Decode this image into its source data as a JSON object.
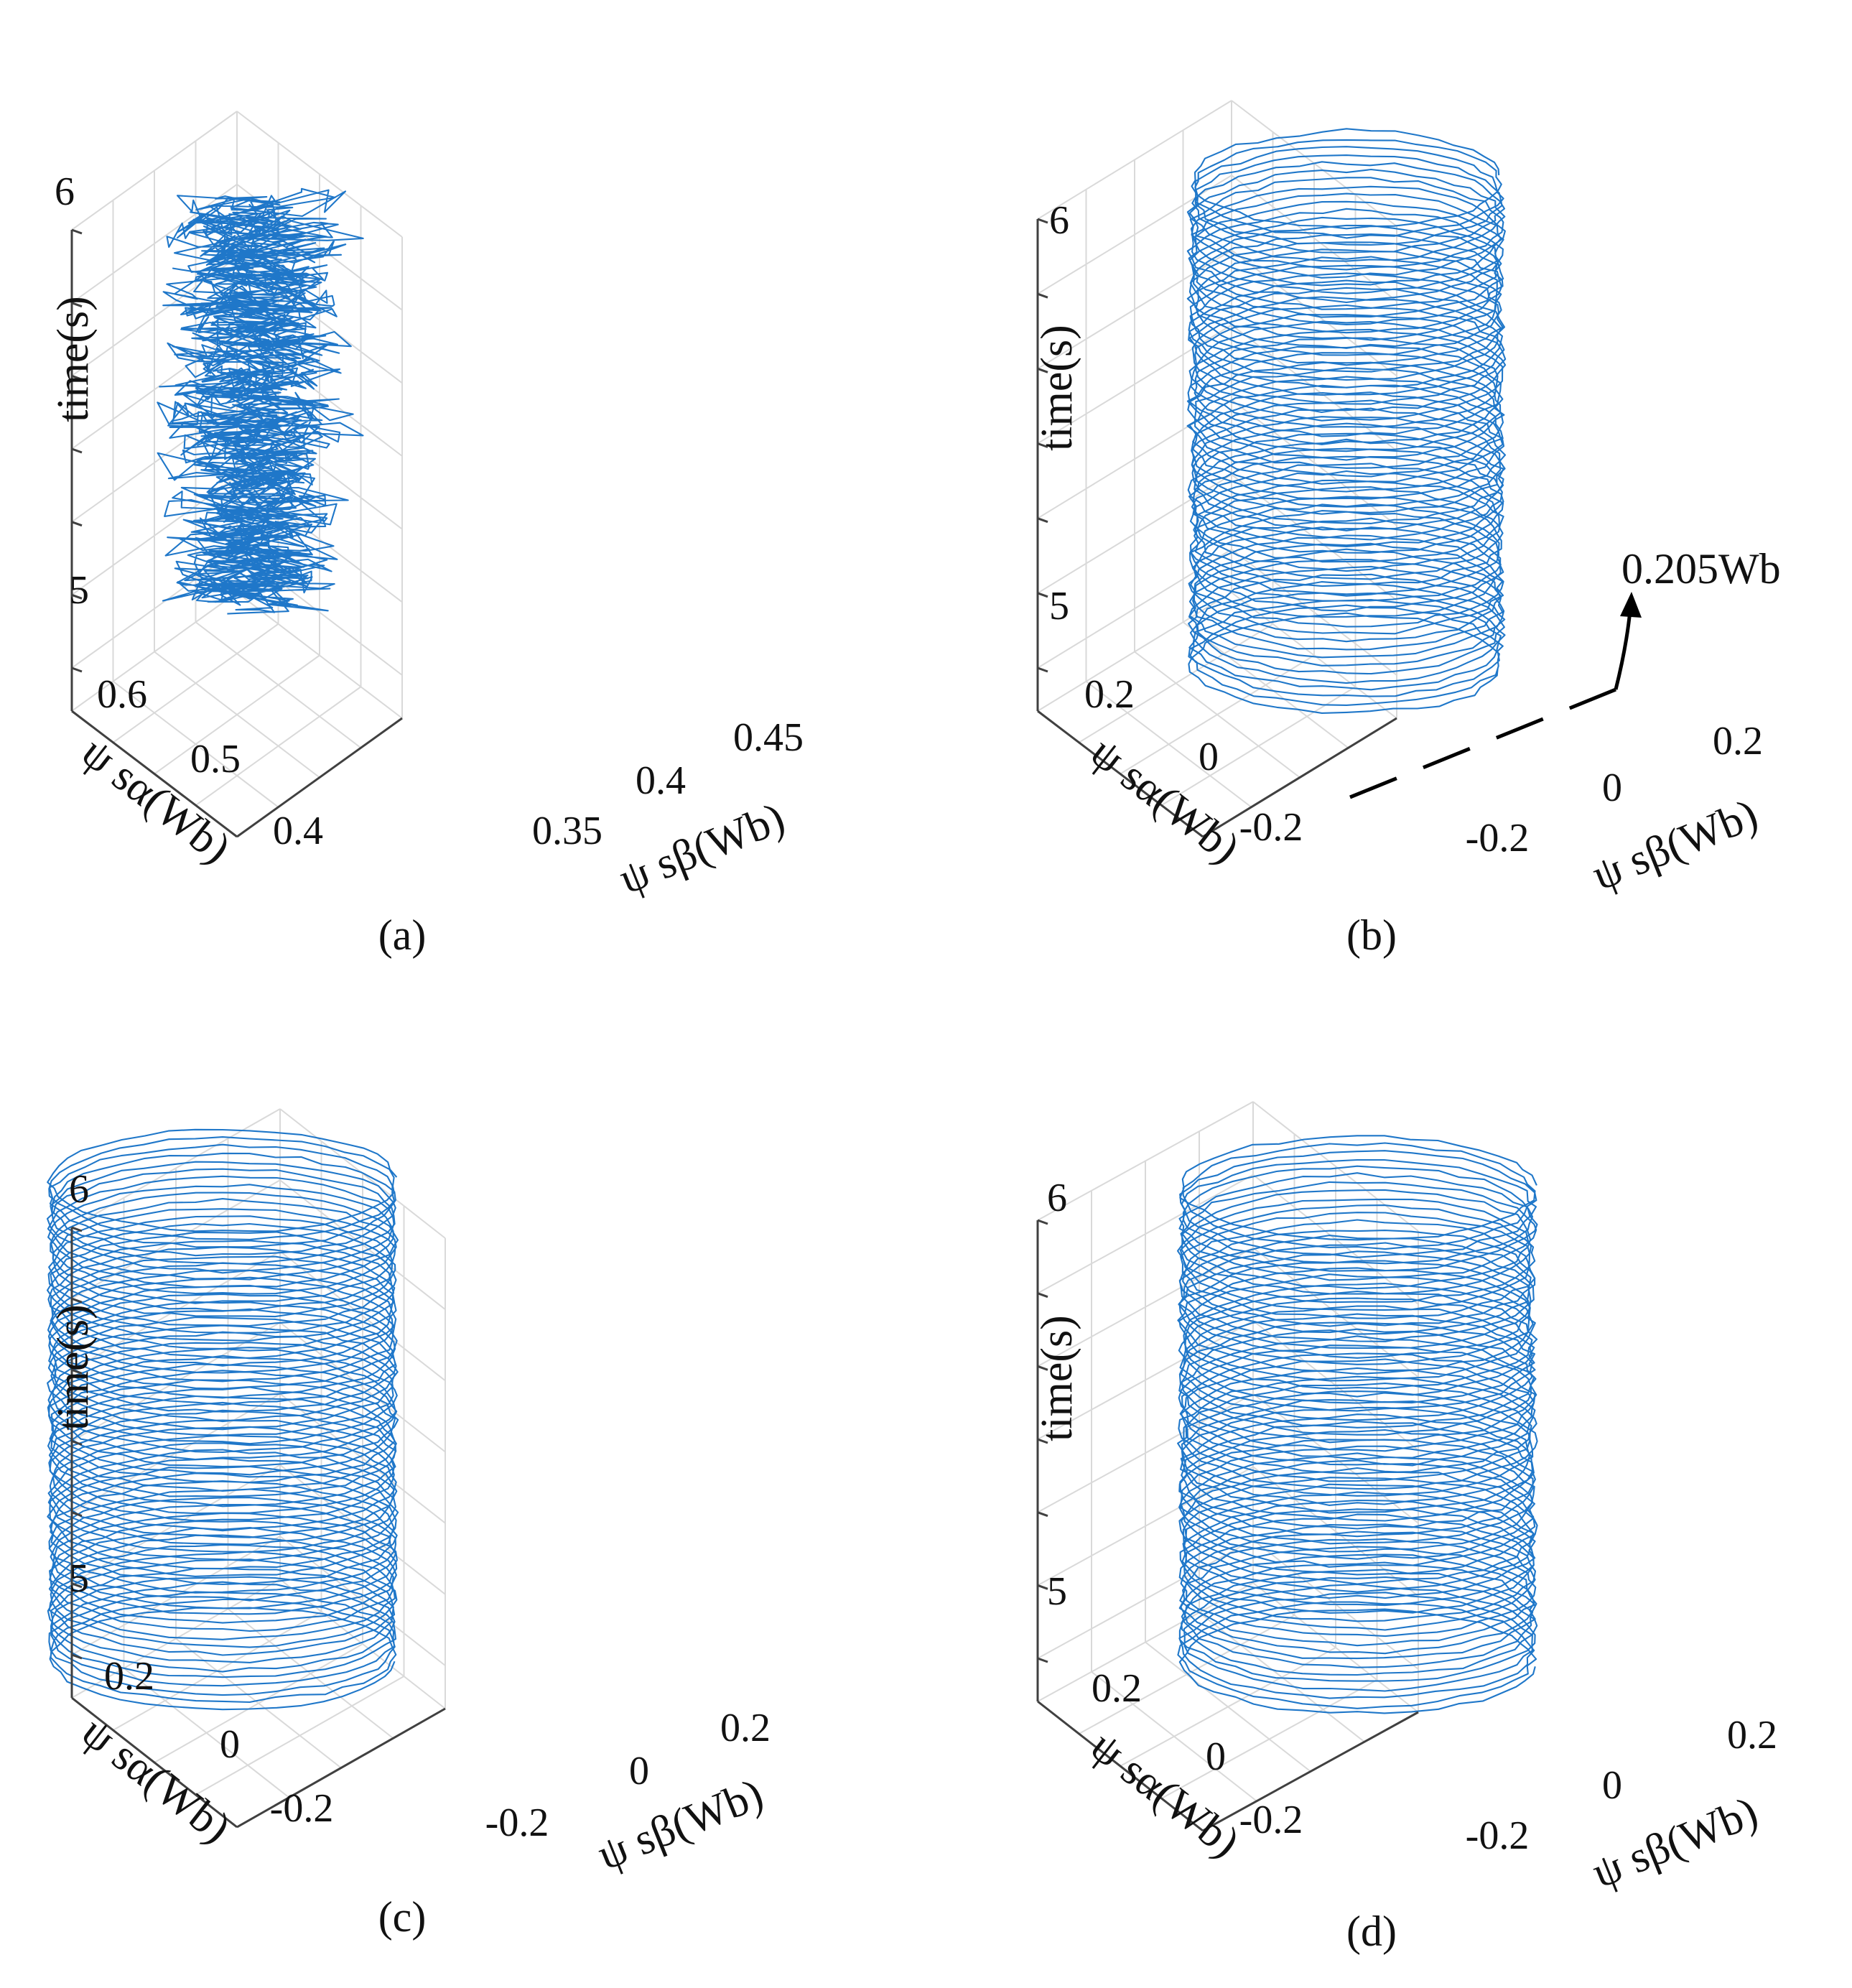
{
  "chart_data": [
    {
      "id": "a",
      "type": "line3d",
      "caption": "(a)",
      "zlabel": "time(s)",
      "xlabel": "ψ sα(Wb)",
      "ylabel": "ψ sβ(Wb)",
      "ztick_labels": [
        "5",
        "6"
      ],
      "xtick_labels": [
        "0.6",
        "0.5",
        "0.4"
      ],
      "ytick_labels": [
        "0.35",
        "0.4",
        "0.45"
      ],
      "xlim": [
        0.35,
        0.65
      ],
      "ylim": [
        0.3,
        0.48
      ],
      "zlim": [
        4.85,
        6.15
      ],
      "trajectory": {
        "shape": "noisy_cluster",
        "center_alpha": 0.5,
        "center_beta": 0.39,
        "spread": 0.04,
        "t_start": 4.92,
        "t_end": 6.05,
        "color": "#1f77c9"
      }
    },
    {
      "id": "b",
      "type": "line3d",
      "caption": "(b)",
      "zlabel": "time(s)",
      "xlabel": "ψ sα(Wb)",
      "ylabel": "ψ sβ(Wb)",
      "ztick_labels": [
        "5",
        "6"
      ],
      "xtick_labels": [
        "0.2",
        "0",
        "-0.2"
      ],
      "ytick_labels": [
        "-0.2",
        "0",
        "0.2"
      ],
      "xlim": [
        -0.25,
        0.25
      ],
      "ylim": [
        -0.25,
        0.25
      ],
      "zlim": [
        4.85,
        6.15
      ],
      "trajectory": {
        "shape": "circle",
        "radius": 0.205,
        "t_start": 4.92,
        "t_end": 6.05,
        "noise": 0.01,
        "color": "#1f77c9"
      },
      "annotation": "0.205Wb"
    },
    {
      "id": "c",
      "type": "line3d",
      "caption": "(c)",
      "zlabel": "time(s)",
      "xlabel": "ψ sα(Wb)",
      "ylabel": "ψ sβ(Wb)",
      "ztick_labels": [
        "5",
        "6"
      ],
      "xtick_labels": [
        "0.2",
        "0",
        "-0.2"
      ],
      "ytick_labels": [
        "-0.2",
        "0",
        "0.2"
      ],
      "xlim": [
        -0.25,
        0.25
      ],
      "ylim": [
        -0.25,
        0.25
      ],
      "zlim": [
        4.85,
        6.15
      ],
      "trajectory": {
        "shape": "circle",
        "radius": 0.205,
        "t_start": 4.92,
        "t_end": 6.05,
        "noise": 0.006,
        "color": "#1f77c9"
      }
    },
    {
      "id": "d",
      "type": "line3d",
      "caption": "(d)",
      "zlabel": "time(s)",
      "xlabel": "ψ sα(Wb)",
      "ylabel": "ψ sβ(Wb)",
      "ztick_labels": [
        "5",
        "6"
      ],
      "xtick_labels": [
        "0.2",
        "0",
        "-0.2"
      ],
      "ytick_labels": [
        "-0.2",
        "0",
        "0.2"
      ],
      "xlim": [
        -0.25,
        0.25
      ],
      "ylim": [
        -0.25,
        0.25
      ],
      "zlim": [
        4.85,
        6.15
      ],
      "trajectory": {
        "shape": "circle",
        "radius": 0.205,
        "t_start": 4.92,
        "t_end": 6.05,
        "noise": 0.008,
        "color": "#1f77c9"
      }
    }
  ]
}
